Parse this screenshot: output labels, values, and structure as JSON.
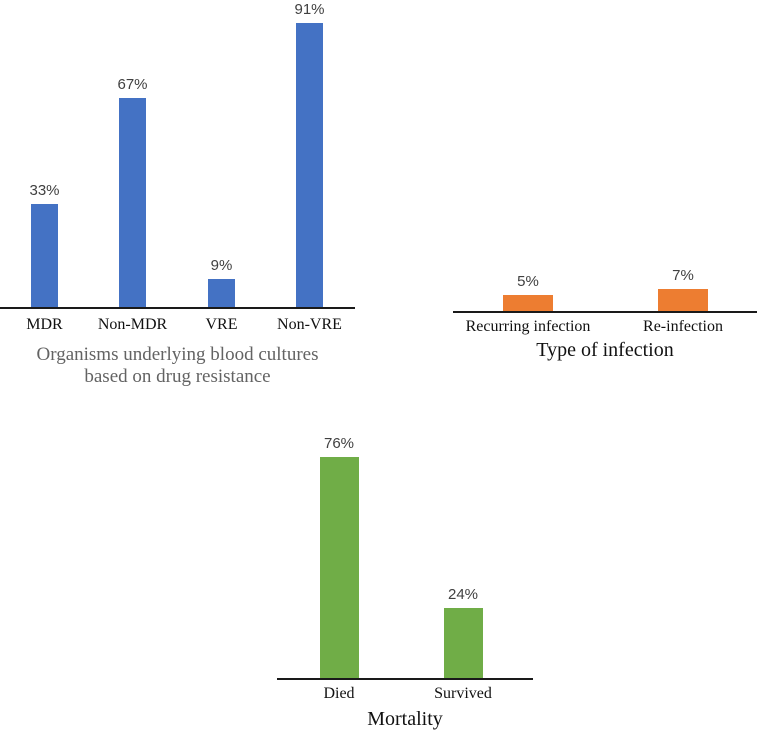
{
  "chart_data": [
    {
      "id": "drug-resistance",
      "type": "bar",
      "categories": [
        "MDR",
        "Non-MDR",
        "VRE",
        "Non-VRE"
      ],
      "values": [
        33,
        67,
        9,
        91
      ],
      "value_labels": [
        "33%",
        "67%",
        "9%",
        "91%"
      ],
      "title": "Organisms underlying blood cultures based on drug resistance",
      "title_lines": [
        "Organisms underlying blood cultures",
        "based on drug resistance"
      ],
      "title_color": "#636363",
      "bar_color": "#4472C4",
      "xlabel": "Organisms underlying blood cultures based on drug resistance",
      "ylabel": "",
      "ylim": [
        0,
        100
      ],
      "grid": false,
      "legend": false
    },
    {
      "id": "infection-type",
      "type": "bar",
      "categories": [
        "Recurring infection",
        "Re-infection"
      ],
      "values": [
        5,
        7
      ],
      "value_labels": [
        "5%",
        "7%"
      ],
      "title": "Type of infection",
      "title_color": "#111111",
      "bar_color": "#ED7D31",
      "xlabel": "Type of infection",
      "ylabel": "",
      "ylim": [
        0,
        100
      ],
      "grid": false,
      "legend": false
    },
    {
      "id": "mortality",
      "type": "bar",
      "categories": [
        "Died",
        "Survived"
      ],
      "values": [
        76,
        24
      ],
      "value_labels": [
        "76%",
        "24%"
      ],
      "title": "Mortality",
      "title_color": "#111111",
      "bar_color": "#70AD47",
      "xlabel": "Mortality",
      "ylabel": "",
      "ylim": [
        0,
        100
      ],
      "grid": false,
      "legend": false
    }
  ],
  "colors": {
    "blue": "#4472C4",
    "orange": "#ED7D31",
    "green": "#70AD47",
    "axis": "#1a1a1a",
    "value_label": "#404040",
    "title_gray": "#636363"
  }
}
